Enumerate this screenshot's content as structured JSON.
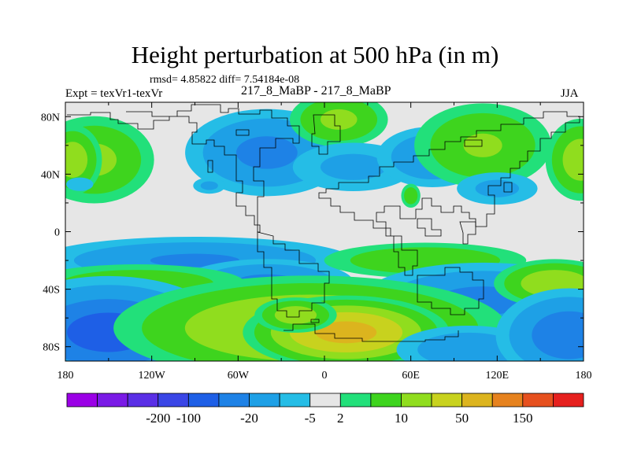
{
  "chart_data": {
    "type": "heatmap",
    "title": "Height perturbation at 500 hPa (in m)",
    "stats_text": "rmsd= 4.85822 diff= 7.54184e-08",
    "experiment_label": "Expt = texVr1-texVr",
    "run_label": "217_8_MaBP - 217_8_MaBP",
    "season": "JJA",
    "xlim": [
      -180,
      180
    ],
    "ylim": [
      -90,
      90
    ],
    "x_ticks": [
      {
        "value": -180,
        "label": "180"
      },
      {
        "value": -120,
        "label": "120W"
      },
      {
        "value": -60,
        "label": "60W"
      },
      {
        "value": 0,
        "label": "0"
      },
      {
        "value": 60,
        "label": "60E"
      },
      {
        "value": 120,
        "label": "120E"
      },
      {
        "value": 180,
        "label": "180"
      }
    ],
    "y_ticks": [
      {
        "value": 80,
        "label": "80N"
      },
      {
        "value": 40,
        "label": "40N"
      },
      {
        "value": 0,
        "label": "0"
      },
      {
        "value": -40,
        "label": "40S"
      },
      {
        "value": -80,
        "label": "80S"
      }
    ],
    "colorbar": {
      "colors": [
        "#9b00e6",
        "#7a1ae6",
        "#5a2fe6",
        "#3a46e6",
        "#1e5fe6",
        "#1e82e6",
        "#1ea0e6",
        "#25bde6",
        "#e6e6e6",
        "#22e07a",
        "#3ed41e",
        "#90dd1e",
        "#c8d21e",
        "#dcb41e",
        "#e6821e",
        "#e6501e",
        "#e6201e"
      ],
      "labels": [
        {
          "after_index": 2,
          "text": "-200"
        },
        {
          "after_index": 3,
          "text": "-100"
        },
        {
          "after_index": 5,
          "text": "-20"
        },
        {
          "after_index": 7,
          "text": "-5"
        },
        {
          "after_index": 8,
          "text": "2"
        },
        {
          "after_index": 10,
          "text": "10"
        },
        {
          "after_index": 12,
          "text": "50"
        },
        {
          "after_index": 14,
          "text": "150"
        }
      ]
    },
    "features": [
      {
        "lon": -160,
        "lat": 50,
        "amp": 9,
        "rx": 22,
        "ry": 16
      },
      {
        "lon": -175,
        "lat": 50,
        "amp": 12,
        "rx": 10,
        "ry": 12
      },
      {
        "lon": -40,
        "lat": 55,
        "amp": -9,
        "rx": 30,
        "ry": 16
      },
      {
        "lon": 10,
        "lat": 78,
        "amp": 9,
        "rx": 18,
        "ry": 10
      },
      {
        "lon": 20,
        "lat": 45,
        "amp": -4,
        "rx": 30,
        "ry": 12
      },
      {
        "lon": 75,
        "lat": 52,
        "amp": -7,
        "rx": 22,
        "ry": 12
      },
      {
        "lon": 110,
        "lat": 60,
        "amp": 8,
        "rx": 26,
        "ry": 16
      },
      {
        "lon": 178,
        "lat": 50,
        "amp": 12,
        "rx": 12,
        "ry": 14
      },
      {
        "lon": 120,
        "lat": 30,
        "amp": -4,
        "rx": 20,
        "ry": 8
      },
      {
        "lon": 60,
        "lat": 25,
        "amp": 6,
        "rx": 4,
        "ry": 5
      },
      {
        "lon": -80,
        "lat": 32,
        "amp": -4,
        "rx": 8,
        "ry": 4
      },
      {
        "lon": -170,
        "lat": 33,
        "amp": -3,
        "rx": 8,
        "ry": 4
      },
      {
        "lon": -90,
        "lat": -20,
        "amp": -8,
        "rx": 60,
        "ry": 9
      },
      {
        "lon": -40,
        "lat": -36,
        "amp": -9,
        "rx": 32,
        "ry": 9
      },
      {
        "lon": 70,
        "lat": -20,
        "amp": 7,
        "rx": 40,
        "ry": 7
      },
      {
        "lon": 110,
        "lat": -48,
        "amp": -9,
        "rx": 45,
        "ry": 14
      },
      {
        "lon": 160,
        "lat": -36,
        "amp": 14,
        "rx": 20,
        "ry": 8
      },
      {
        "lon": -130,
        "lat": -36,
        "amp": 6,
        "rx": 45,
        "ry": 8
      },
      {
        "lon": -150,
        "lat": -70,
        "amp": -16,
        "rx": 38,
        "ry": 18
      },
      {
        "lon": -10,
        "lat": -67,
        "amp": 20,
        "rx": 60,
        "ry": 16
      },
      {
        "lon": 15,
        "lat": -70,
        "amp": 40,
        "rx": 28,
        "ry": 10
      },
      {
        "lon": -20,
        "lat": -58,
        "amp": 12,
        "rx": 14,
        "ry": 6
      },
      {
        "lon": 100,
        "lat": -82,
        "amp": -6,
        "rx": 30,
        "ry": 10
      },
      {
        "lon": 170,
        "lat": -72,
        "amp": -12,
        "rx": 25,
        "ry": 16
      }
    ]
  }
}
